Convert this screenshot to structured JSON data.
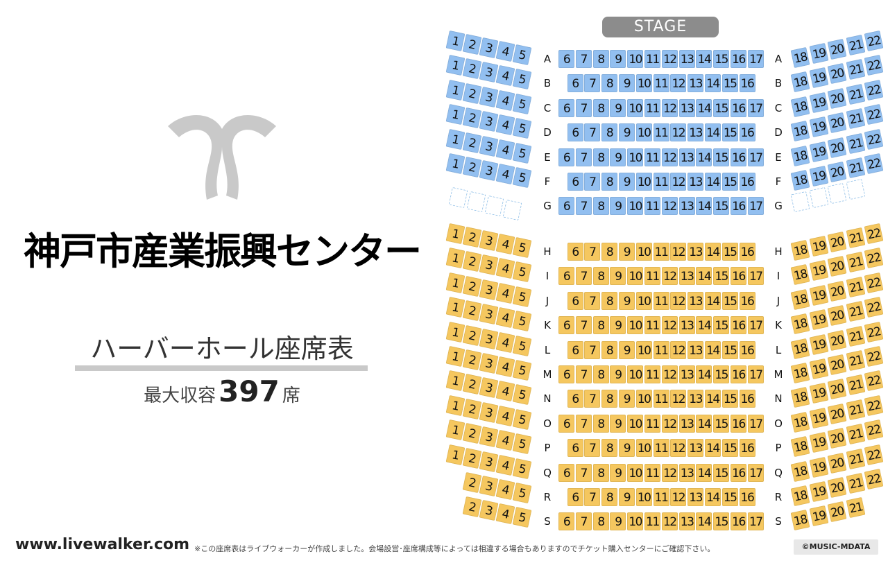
{
  "venue": {
    "name": "神戸市産業振興センター",
    "hall": "ハーバーホール座席表",
    "capacity_label": "最大収容",
    "capacity_value": "397",
    "capacity_unit": "席"
  },
  "stage_label": "STAGE",
  "site_url": "www.livewalker.com",
  "note": "※この座席表はライブウォーカーが作成しました。会場設営･座席構成等によっては相違する場合もありますのでチケット購入センターにご確認下さい。",
  "copyright": "©MUSIC-MDATA",
  "colors": {
    "front_block": "#92bff0",
    "rear_block": "#f5c75f",
    "stage": "#8c8c8c",
    "logo": "#c9c9c9"
  },
  "rows": [
    {
      "label": "A",
      "block": "front",
      "left": [
        1,
        2,
        3,
        4,
        5
      ],
      "center": [
        6,
        7,
        8,
        9,
        10,
        11,
        12,
        13,
        14,
        15,
        16,
        17
      ],
      "right": [
        18,
        19,
        20,
        21,
        22
      ]
    },
    {
      "label": "B",
      "block": "front",
      "left": [
        1,
        2,
        3,
        4,
        5
      ],
      "center": [
        6,
        7,
        8,
        9,
        10,
        11,
        12,
        13,
        14,
        15,
        16
      ],
      "right": [
        18,
        19,
        20,
        21,
        22
      ]
    },
    {
      "label": "C",
      "block": "front",
      "left": [
        1,
        2,
        3,
        4,
        5
      ],
      "center": [
        6,
        7,
        8,
        9,
        10,
        11,
        12,
        13,
        14,
        15,
        16,
        17
      ],
      "right": [
        18,
        19,
        20,
        21,
        22
      ]
    },
    {
      "label": "D",
      "block": "front",
      "left": [
        1,
        2,
        3,
        4,
        5
      ],
      "center": [
        6,
        7,
        8,
        9,
        10,
        11,
        12,
        13,
        14,
        15,
        16
      ],
      "right": [
        18,
        19,
        20,
        21,
        22
      ]
    },
    {
      "label": "E",
      "block": "front",
      "left": [
        1,
        2,
        3,
        4,
        5
      ],
      "center": [
        6,
        7,
        8,
        9,
        10,
        11,
        12,
        13,
        14,
        15,
        16,
        17
      ],
      "right": [
        18,
        19,
        20,
        21,
        22
      ]
    },
    {
      "label": "F",
      "block": "front",
      "left": [
        1,
        2,
        3,
        4,
        5
      ],
      "center": [
        6,
        7,
        8,
        9,
        10,
        11,
        12,
        13,
        14,
        15,
        16
      ],
      "right": [
        18,
        19,
        20,
        21,
        22
      ]
    },
    {
      "label": "G",
      "block": "front",
      "left": [],
      "center": [
        6,
        7,
        8,
        9,
        10,
        11,
        12,
        13,
        14,
        15,
        16,
        17
      ],
      "right": [],
      "left_empty": 4,
      "right_empty": 4
    },
    {
      "label": "H",
      "block": "rear",
      "left": [
        1,
        2,
        3,
        4,
        5
      ],
      "center": [
        6,
        7,
        8,
        9,
        10,
        11,
        12,
        13,
        14,
        15,
        16
      ],
      "right": [
        18,
        19,
        20,
        21,
        22
      ]
    },
    {
      "label": "I",
      "block": "rear",
      "left": [
        1,
        2,
        3,
        4,
        5
      ],
      "center": [
        6,
        7,
        8,
        9,
        10,
        11,
        12,
        13,
        14,
        15,
        16,
        17
      ],
      "right": [
        18,
        19,
        20,
        21,
        22
      ]
    },
    {
      "label": "J",
      "block": "rear",
      "left": [
        1,
        2,
        3,
        4,
        5
      ],
      "center": [
        6,
        7,
        8,
        9,
        10,
        11,
        12,
        13,
        14,
        15,
        16
      ],
      "right": [
        18,
        19,
        20,
        21,
        22
      ]
    },
    {
      "label": "K",
      "block": "rear",
      "left": [
        1,
        2,
        3,
        4,
        5
      ],
      "center": [
        6,
        7,
        8,
        9,
        10,
        11,
        12,
        13,
        14,
        15,
        16,
        17
      ],
      "right": [
        18,
        19,
        20,
        21,
        22
      ]
    },
    {
      "label": "L",
      "block": "rear",
      "left": [
        1,
        2,
        3,
        4,
        5
      ],
      "center": [
        6,
        7,
        8,
        9,
        10,
        11,
        12,
        13,
        14,
        15,
        16
      ],
      "right": [
        18,
        19,
        20,
        21,
        22
      ]
    },
    {
      "label": "M",
      "block": "rear",
      "left": [
        1,
        2,
        3,
        4,
        5
      ],
      "center": [
        6,
        7,
        8,
        9,
        10,
        11,
        12,
        13,
        14,
        15,
        16,
        17
      ],
      "right": [
        18,
        19,
        20,
        21,
        22
      ]
    },
    {
      "label": "N",
      "block": "rear",
      "left": [
        1,
        2,
        3,
        4,
        5
      ],
      "center": [
        6,
        7,
        8,
        9,
        10,
        11,
        12,
        13,
        14,
        15,
        16
      ],
      "right": [
        18,
        19,
        20,
        21,
        22
      ]
    },
    {
      "label": "O",
      "block": "rear",
      "left": [
        1,
        2,
        3,
        4,
        5
      ],
      "center": [
        6,
        7,
        8,
        9,
        10,
        11,
        12,
        13,
        14,
        15,
        16,
        17
      ],
      "right": [
        18,
        19,
        20,
        21,
        22
      ]
    },
    {
      "label": "P",
      "block": "rear",
      "left": [
        1,
        2,
        3,
        4,
        5
      ],
      "center": [
        6,
        7,
        8,
        9,
        10,
        11,
        12,
        13,
        14,
        15,
        16
      ],
      "right": [
        18,
        19,
        20,
        21,
        22
      ]
    },
    {
      "label": "Q",
      "block": "rear",
      "left": [
        1,
        2,
        3,
        4,
        5
      ],
      "center": [
        6,
        7,
        8,
        9,
        10,
        11,
        12,
        13,
        14,
        15,
        16,
        17
      ],
      "right": [
        18,
        19,
        20,
        21,
        22
      ]
    },
    {
      "label": "R",
      "block": "rear",
      "left": [
        2,
        3,
        4,
        5
      ],
      "center": [
        6,
        7,
        8,
        9,
        10,
        11,
        12,
        13,
        14,
        15,
        16
      ],
      "right": [
        18,
        19,
        20,
        21,
        22
      ]
    },
    {
      "label": "S",
      "block": "rear",
      "left": [
        2,
        3,
        4,
        5
      ],
      "center": [
        6,
        7,
        8,
        9,
        10,
        11,
        12,
        13,
        14,
        15,
        16,
        17
      ],
      "right": [
        18,
        19,
        20,
        21
      ]
    }
  ]
}
